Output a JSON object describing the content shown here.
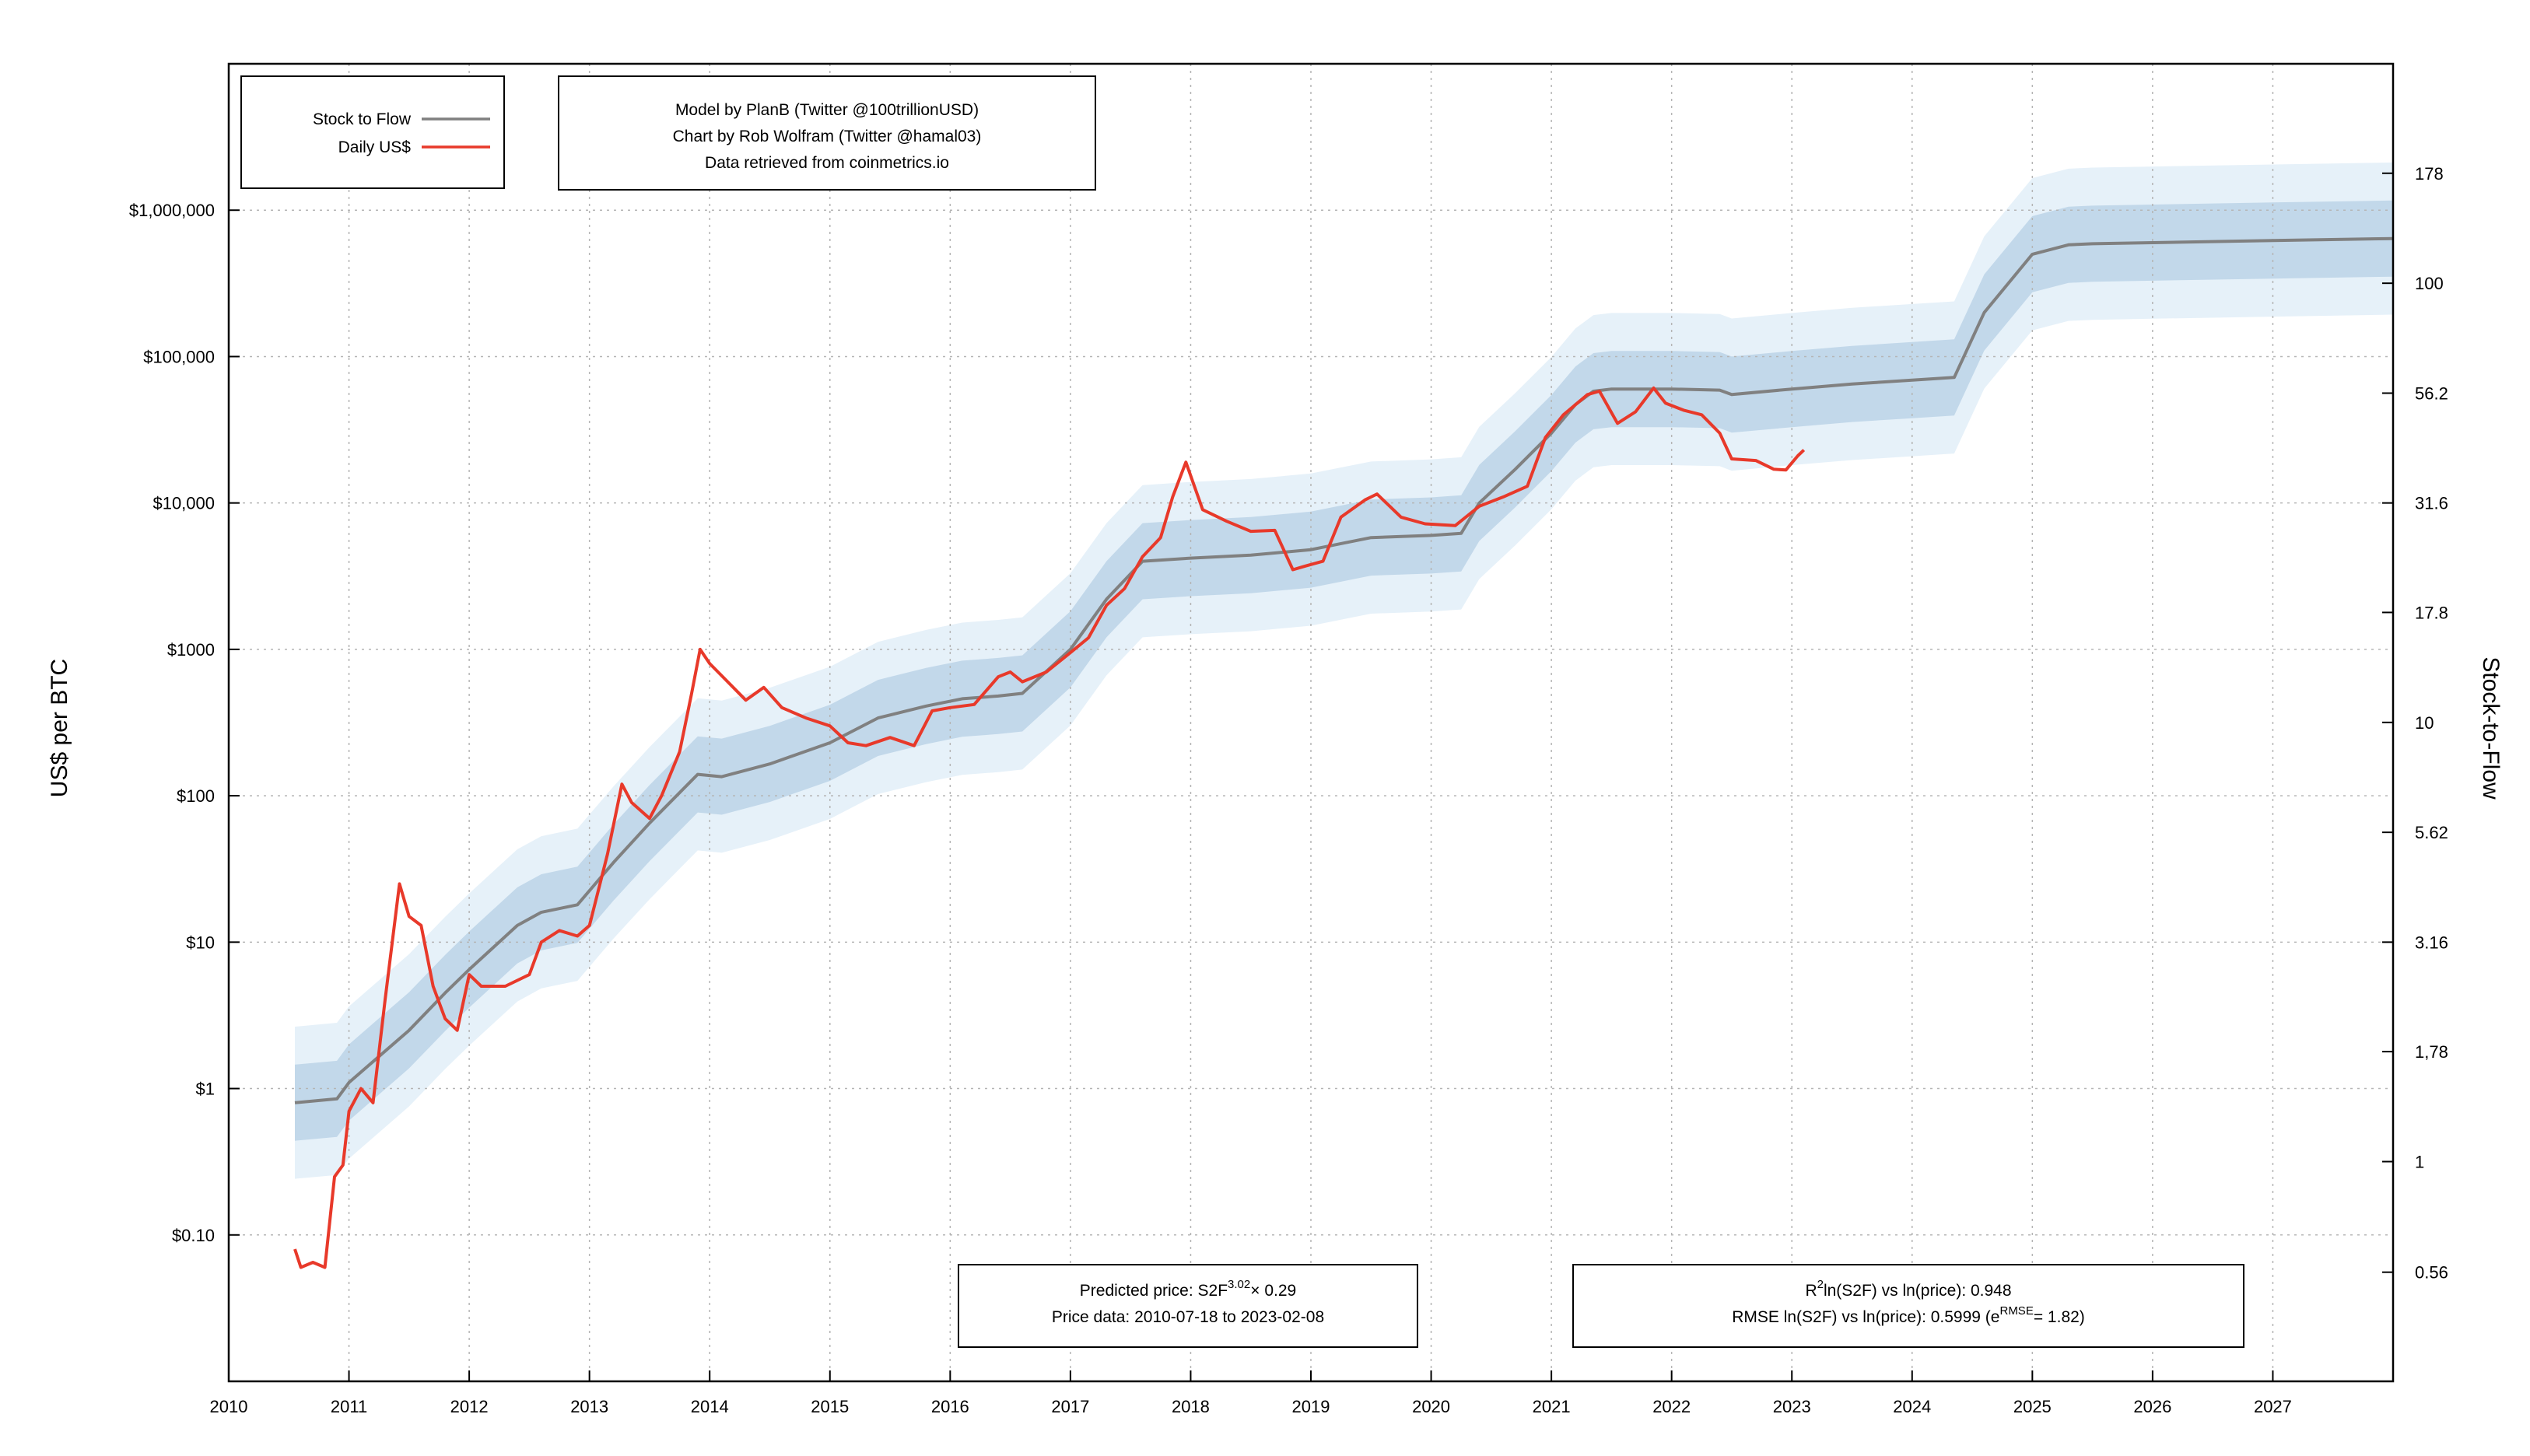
{
  "chart_data": {
    "type": "line",
    "title": "",
    "xlabel": "",
    "ylabel": "US$ per BTC",
    "y2label": "Stock-to-Flow",
    "y_scale": "log",
    "xlim": [
      2010,
      2028
    ],
    "ylim": [
      0.01,
      10000000
    ],
    "y2lim": [
      0.316,
      316
    ],
    "grid": true,
    "legend_position": "top-left",
    "x_tick_labels": [
      "2010",
      "2011",
      "2012",
      "2013",
      "2014",
      "2015",
      "2016",
      "2017",
      "2018",
      "2019",
      "2020",
      "2021",
      "2022",
      "2023",
      "2024",
      "2025",
      "2026",
      "2027"
    ],
    "y_ticks": [
      {
        "value": 0.1,
        "label": "$0.10"
      },
      {
        "value": 1,
        "label": "$1"
      },
      {
        "value": 10,
        "label": "$10"
      },
      {
        "value": 100,
        "label": "$100"
      },
      {
        "value": 1000,
        "label": "$1000"
      },
      {
        "value": 10000,
        "label": "$10,000"
      },
      {
        "value": 100000,
        "label": "$100,000"
      },
      {
        "value": 1000000,
        "label": "$1,000,000"
      }
    ],
    "y2_ticks": [
      {
        "value": 0.56,
        "label": "0.56"
      },
      {
        "value": 1,
        "label": "1"
      },
      {
        "value": 1.78,
        "label": "1,78"
      },
      {
        "value": 3.16,
        "label": "3.16"
      },
      {
        "value": 5.62,
        "label": "5.62"
      },
      {
        "value": 10,
        "label": "10"
      },
      {
        "value": 17.8,
        "label": "17.8"
      },
      {
        "value": 31.6,
        "label": "31.6"
      },
      {
        "value": 56.2,
        "label": "56.2"
      },
      {
        "value": 100,
        "label": "100"
      },
      {
        "value": 178,
        "label": "178"
      }
    ],
    "legend": [
      {
        "label": "Stock to Flow",
        "color": "#808080"
      },
      {
        "label": "Daily US$",
        "color": "#e8392a"
      }
    ],
    "credits": [
      "Model by PlanB (Twitter @100trillionUSD)",
      "Chart by Rob Wolfram (Twitter @hamal03)",
      "Data retrieved from coinmetrics.io"
    ],
    "annotation_left": {
      "line1_pre": "Predicted price: S2F",
      "line1_sup": "3.02",
      "line1_post": "× 0.29",
      "line2": "Price data: 2010-07-18 to 2023-02-08"
    },
    "annotation_right": {
      "line1_pre": "R",
      "line1_sup": "2",
      "line1_post": "ln(S2F) vs ln(price): 0.948",
      "line2_pre": "RMSE ln(S2F) vs ln(price): 0.5999 (e",
      "line2_sup": "RMSE",
      "line2_post": "= 1.82)"
    },
    "colors": {
      "price": "#e8392a",
      "model": "#808080",
      "band_inner": "#c2d8ea",
      "band_outer": "#e6f1f9",
      "grid": "#b5b5b5"
    },
    "band_factors": {
      "inner_sigma": 1.82,
      "outer_sigma2": 3.31
    },
    "series": [
      {
        "name": "Stock to Flow",
        "x": [
          2010.55,
          2010.9,
          2011.0,
          2011.5,
          2011.8,
          2012.0,
          2012.4,
          2012.6,
          2012.9,
          2013.2,
          2013.5,
          2013.9,
          2014.1,
          2014.5,
          2015.0,
          2015.4,
          2015.8,
          2016.1,
          2016.4,
          2016.6,
          2017.0,
          2017.3,
          2017.6,
          2018.0,
          2018.5,
          2019.0,
          2019.5,
          2020.0,
          2020.25,
          2020.4,
          2020.7,
          2021.0,
          2021.2,
          2021.35,
          2021.5,
          2022.0,
          2022.4,
          2022.5,
          2023.0,
          2023.5,
          2024.0,
          2024.35,
          2024.6,
          2025.0,
          2025.3,
          2025.5,
          2026.0,
          2027.0,
          2028.0
        ],
        "y": [
          0.8,
          0.85,
          1.1,
          2.5,
          4.5,
          6.5,
          13,
          16,
          18,
          35,
          65,
          140,
          135,
          165,
          230,
          340,
          410,
          460,
          480,
          500,
          1000,
          2200,
          4000,
          4200,
          4400,
          4800,
          5800,
          6000,
          6200,
          10000,
          17000,
          30000,
          47000,
          58000,
          60000,
          60000,
          59000,
          55000,
          60000,
          65000,
          69000,
          72000,
          200000,
          500000,
          580000,
          590000,
          600000,
          620000,
          640000
        ]
      },
      {
        "name": "Daily US$",
        "x": [
          2010.55,
          2010.6,
          2010.7,
          2010.8,
          2010.88,
          2010.95,
          2011.0,
          2011.1,
          2011.2,
          2011.3,
          2011.42,
          2011.5,
          2011.6,
          2011.7,
          2011.8,
          2011.9,
          2012.0,
          2012.1,
          2012.3,
          2012.5,
          2012.6,
          2012.75,
          2012.9,
          2013.0,
          2013.15,
          2013.27,
          2013.35,
          2013.5,
          2013.6,
          2013.75,
          2013.85,
          2013.92,
          2014.0,
          2014.15,
          2014.3,
          2014.45,
          2014.6,
          2014.8,
          2015.0,
          2015.15,
          2015.3,
          2015.5,
          2015.7,
          2015.85,
          2016.0,
          2016.2,
          2016.4,
          2016.5,
          2016.6,
          2016.8,
          2017.0,
          2017.15,
          2017.3,
          2017.45,
          2017.6,
          2017.75,
          2017.85,
          2017.96,
          2018.1,
          2018.3,
          2018.5,
          2018.7,
          2018.85,
          2018.95,
          2019.1,
          2019.25,
          2019.45,
          2019.55,
          2019.75,
          2019.95,
          2020.2,
          2020.4,
          2020.6,
          2020.8,
          2020.95,
          2021.1,
          2021.3,
          2021.4,
          2021.55,
          2021.7,
          2021.85,
          2021.95,
          2022.1,
          2022.25,
          2022.4,
          2022.5,
          2022.7,
          2022.85,
          2022.95,
          2023.05,
          2023.1
        ],
        "y": [
          0.08,
          0.06,
          0.065,
          0.06,
          0.25,
          0.3,
          0.7,
          1.0,
          0.8,
          4,
          25,
          15,
          13,
          5,
          3,
          2.5,
          6,
          5,
          5,
          6,
          10,
          12,
          11,
          13,
          40,
          120,
          90,
          70,
          100,
          200,
          500,
          1000,
          800,
          600,
          450,
          550,
          400,
          340,
          300,
          230,
          220,
          250,
          220,
          380,
          400,
          420,
          650,
          700,
          600,
          700,
          950,
          1200,
          2000,
          2600,
          4300,
          5800,
          11000,
          19000,
          9000,
          7500,
          6400,
          6500,
          3500,
          3700,
          4000,
          8000,
          10500,
          11500,
          8000,
          7200,
          7000,
          9500,
          11000,
          13000,
          28000,
          40000,
          55000,
          58000,
          35000,
          42000,
          61000,
          48000,
          43000,
          40000,
          30000,
          20000,
          19500,
          17000,
          16800,
          21000,
          23000
        ]
      }
    ]
  }
}
